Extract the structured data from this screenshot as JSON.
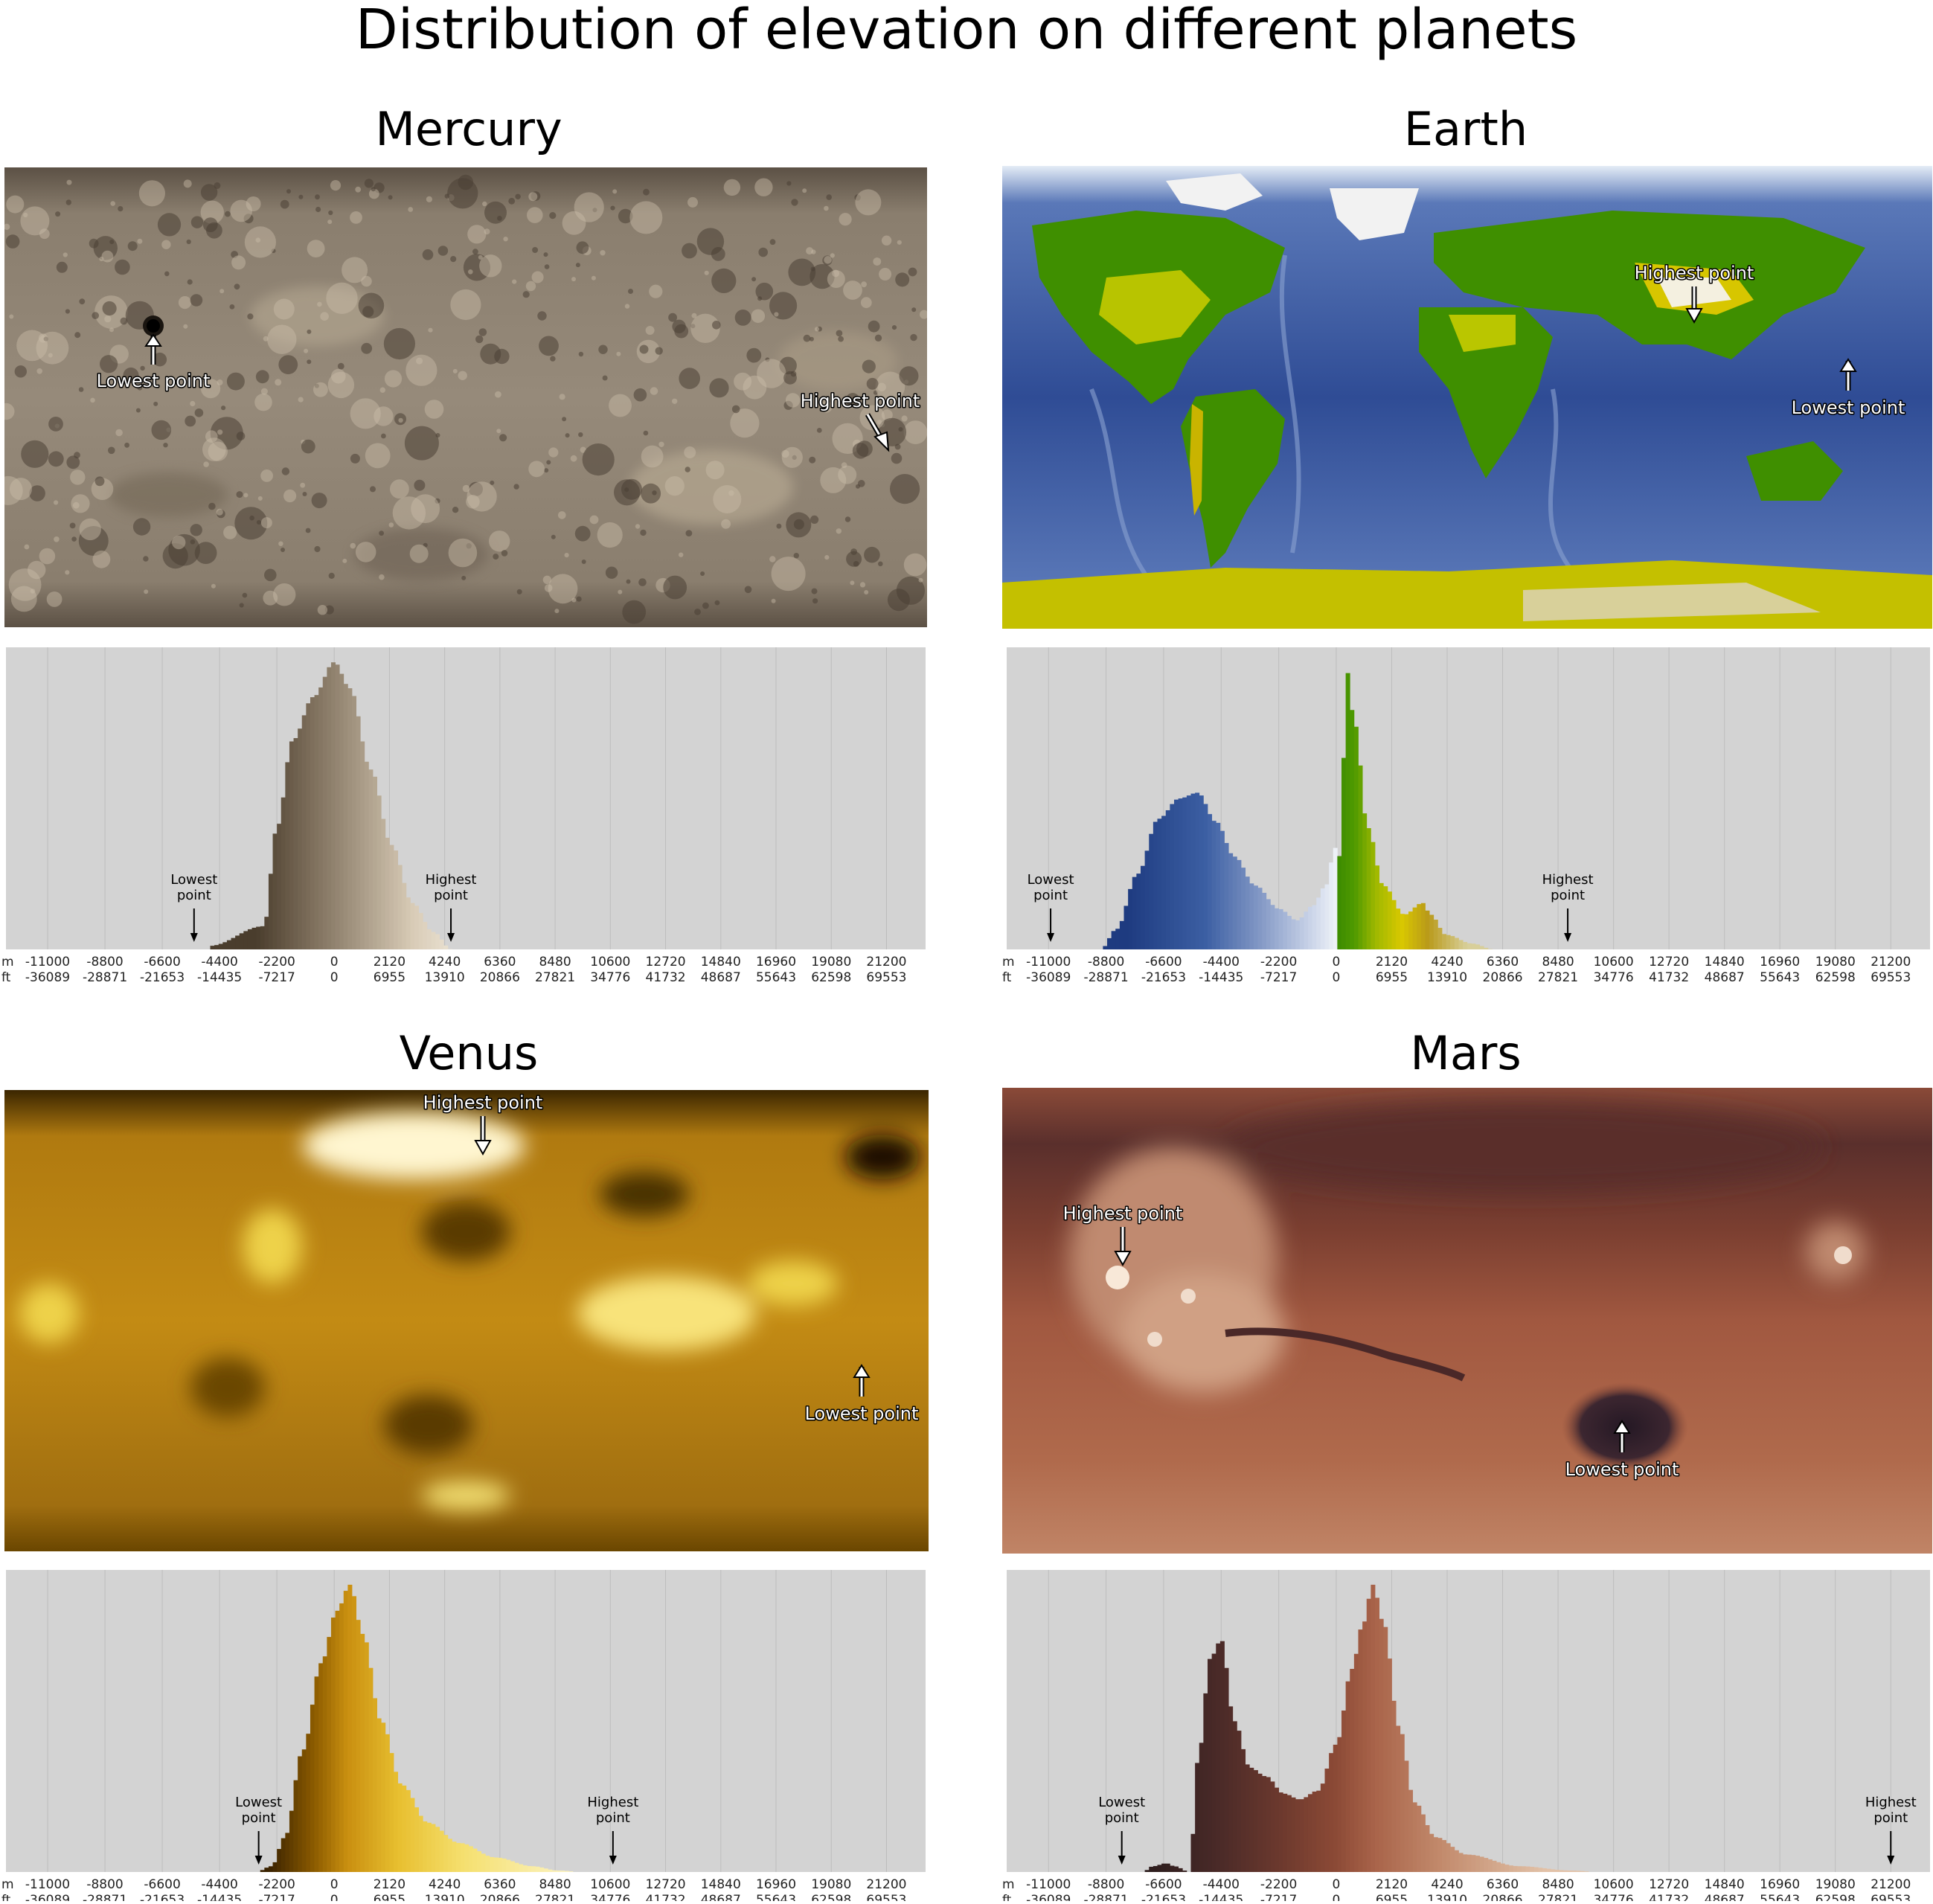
{
  "title": "Distribution of elevation on different planets",
  "m_ticks": [
    -11000,
    -8800,
    -6600,
    -4400,
    -2200,
    0,
    2120,
    4240,
    6360,
    8480,
    10600,
    12720,
    14840,
    16960,
    19080,
    21200
  ],
  "ft_ticks": [
    -36089,
    -28871,
    -21653,
    -14435,
    -7217,
    0,
    6955,
    13910,
    20866,
    27821,
    34776,
    41732,
    48687,
    55643,
    62598,
    69553
  ],
  "unit_m": "m",
  "unit_ft": "ft",
  "highest_label": "Highest point",
  "lowest_label": "Lowest point",
  "hist_highest_label": [
    "Highest",
    "point"
  ],
  "hist_lowest_label": [
    "Lowest",
    "point"
  ],
  "colors": {
    "panel_bg": "#d3d3d3",
    "grid": "#bdbdbd"
  },
  "chart_data": [
    {
      "planet": "Mercury",
      "type": "bar",
      "title": "Mercury",
      "xlim": [
        -12600,
        22700
      ],
      "bin_width": 160,
      "lowest_point_m": -5380,
      "highest_point_m": 4480,
      "peaks": [
        [
          -4800,
          0.012
        ],
        [
          -2700,
          0.08
        ],
        [
          -2200,
          0.42
        ],
        [
          -1600,
          0.72
        ],
        [
          -800,
          0.87
        ],
        [
          0,
          0.99
        ],
        [
          600,
          0.9
        ],
        [
          1400,
          0.62
        ],
        [
          2200,
          0.36
        ],
        [
          3000,
          0.16
        ],
        [
          3800,
          0.06
        ],
        [
          4500,
          0
        ],
        [
          5000,
          0
        ]
      ],
      "colors": [
        [
          -3000,
          "#4a3d2d"
        ],
        [
          -1000,
          "#7a6b58"
        ],
        [
          1000,
          "#a89a86"
        ],
        [
          3000,
          "#d8cbb6"
        ],
        [
          5000,
          "#efe8da"
        ]
      ]
    },
    {
      "planet": "Earth",
      "type": "bar",
      "title": "Earth",
      "xlim": [
        -12600,
        22700
      ],
      "bin_width": 160,
      "lowest_point_m": -10920,
      "highest_point_m": 8850,
      "peaks": [
        [
          -9000,
          0
        ],
        [
          -8400,
          0.07
        ],
        [
          -7600,
          0.26
        ],
        [
          -6800,
          0.45
        ],
        [
          -6000,
          0.52
        ],
        [
          -5300,
          0.54
        ],
        [
          -4600,
          0.44
        ],
        [
          -3900,
          0.32
        ],
        [
          -3100,
          0.22
        ],
        [
          -2200,
          0.14
        ],
        [
          -1500,
          0.1
        ],
        [
          -900,
          0.15
        ],
        [
          -400,
          0.22
        ],
        [
          -50,
          0.35
        ],
        [
          150,
          0.32
        ],
        [
          400,
          0.96
        ],
        [
          700,
          0.78
        ],
        [
          1200,
          0.42
        ],
        [
          1800,
          0.22
        ],
        [
          2600,
          0.12
        ],
        [
          3300,
          0.16
        ],
        [
          3600,
          0.12
        ],
        [
          4200,
          0.05
        ],
        [
          5200,
          0.02
        ],
        [
          6000,
          0
        ]
      ],
      "colors": [
        [
          -8000,
          "#1e3b80"
        ],
        [
          -5000,
          "#3c5fa3"
        ],
        [
          -3000,
          "#8096c4"
        ],
        [
          -1000,
          "#c9d3e8"
        ],
        [
          -1,
          "#eef2f8"
        ],
        [
          0,
          "#3b8a00"
        ],
        [
          700,
          "#4f9a00"
        ],
        [
          1500,
          "#9fb800"
        ],
        [
          2500,
          "#d9c800"
        ],
        [
          3500,
          "#b99a1a"
        ],
        [
          5000,
          "#d8cf9a"
        ]
      ]
    },
    {
      "planet": "Venus",
      "type": "bar",
      "title": "Venus",
      "xlim": [
        -12600,
        22700
      ],
      "bin_width": 160,
      "lowest_point_m": -2900,
      "highest_point_m": 10700,
      "peaks": [
        [
          -3000,
          0
        ],
        [
          -2400,
          0.02
        ],
        [
          -1900,
          0.12
        ],
        [
          -1200,
          0.42
        ],
        [
          -500,
          0.72
        ],
        [
          100,
          0.9
        ],
        [
          600,
          0.99
        ],
        [
          1100,
          0.82
        ],
        [
          1800,
          0.52
        ],
        [
          2600,
          0.3
        ],
        [
          3600,
          0.17
        ],
        [
          4800,
          0.1
        ],
        [
          6200,
          0.05
        ],
        [
          7600,
          0.02
        ],
        [
          8600,
          0.005
        ],
        [
          9500,
          0
        ]
      ],
      "colors": [
        [
          -2500,
          "#3a2200"
        ],
        [
          -800,
          "#8a5a00"
        ],
        [
          500,
          "#c98f10"
        ],
        [
          2500,
          "#e8c030"
        ],
        [
          5000,
          "#f5e070"
        ],
        [
          9000,
          "#fbf2c0"
        ]
      ]
    },
    {
      "planet": "Mars",
      "type": "bar",
      "title": "Mars",
      "xlim": [
        -12600,
        22700
      ],
      "bin_width": 160,
      "lowest_point_m": -8200,
      "highest_point_m": 21200,
      "peaks": [
        [
          -7400,
          0
        ],
        [
          -7000,
          0.02
        ],
        [
          -6500,
          0.03
        ],
        [
          -6200,
          0.02
        ],
        [
          -5600,
          0
        ],
        [
          -5300,
          0.38
        ],
        [
          -4800,
          0.74
        ],
        [
          -4400,
          0.8
        ],
        [
          -3900,
          0.52
        ],
        [
          -3300,
          0.36
        ],
        [
          -2700,
          0.33
        ],
        [
          -2000,
          0.27
        ],
        [
          -1400,
          0.25
        ],
        [
          -700,
          0.28
        ],
        [
          0,
          0.44
        ],
        [
          600,
          0.7
        ],
        [
          1000,
          0.85
        ],
        [
          1400,
          0.99
        ],
        [
          1800,
          0.86
        ],
        [
          2400,
          0.5
        ],
        [
          3000,
          0.24
        ],
        [
          3800,
          0.12
        ],
        [
          5000,
          0.06
        ],
        [
          7000,
          0.02
        ],
        [
          9000,
          0.005
        ],
        [
          10000,
          0
        ]
      ],
      "colors": [
        [
          -7000,
          "#2e1e1e"
        ],
        [
          -4500,
          "#4a2a28"
        ],
        [
          -2000,
          "#6e3a2e"
        ],
        [
          0,
          "#8c4a36"
        ],
        [
          1500,
          "#a9644a"
        ],
        [
          4000,
          "#c28a6c"
        ],
        [
          8000,
          "#e2c2a8"
        ]
      ]
    }
  ]
}
